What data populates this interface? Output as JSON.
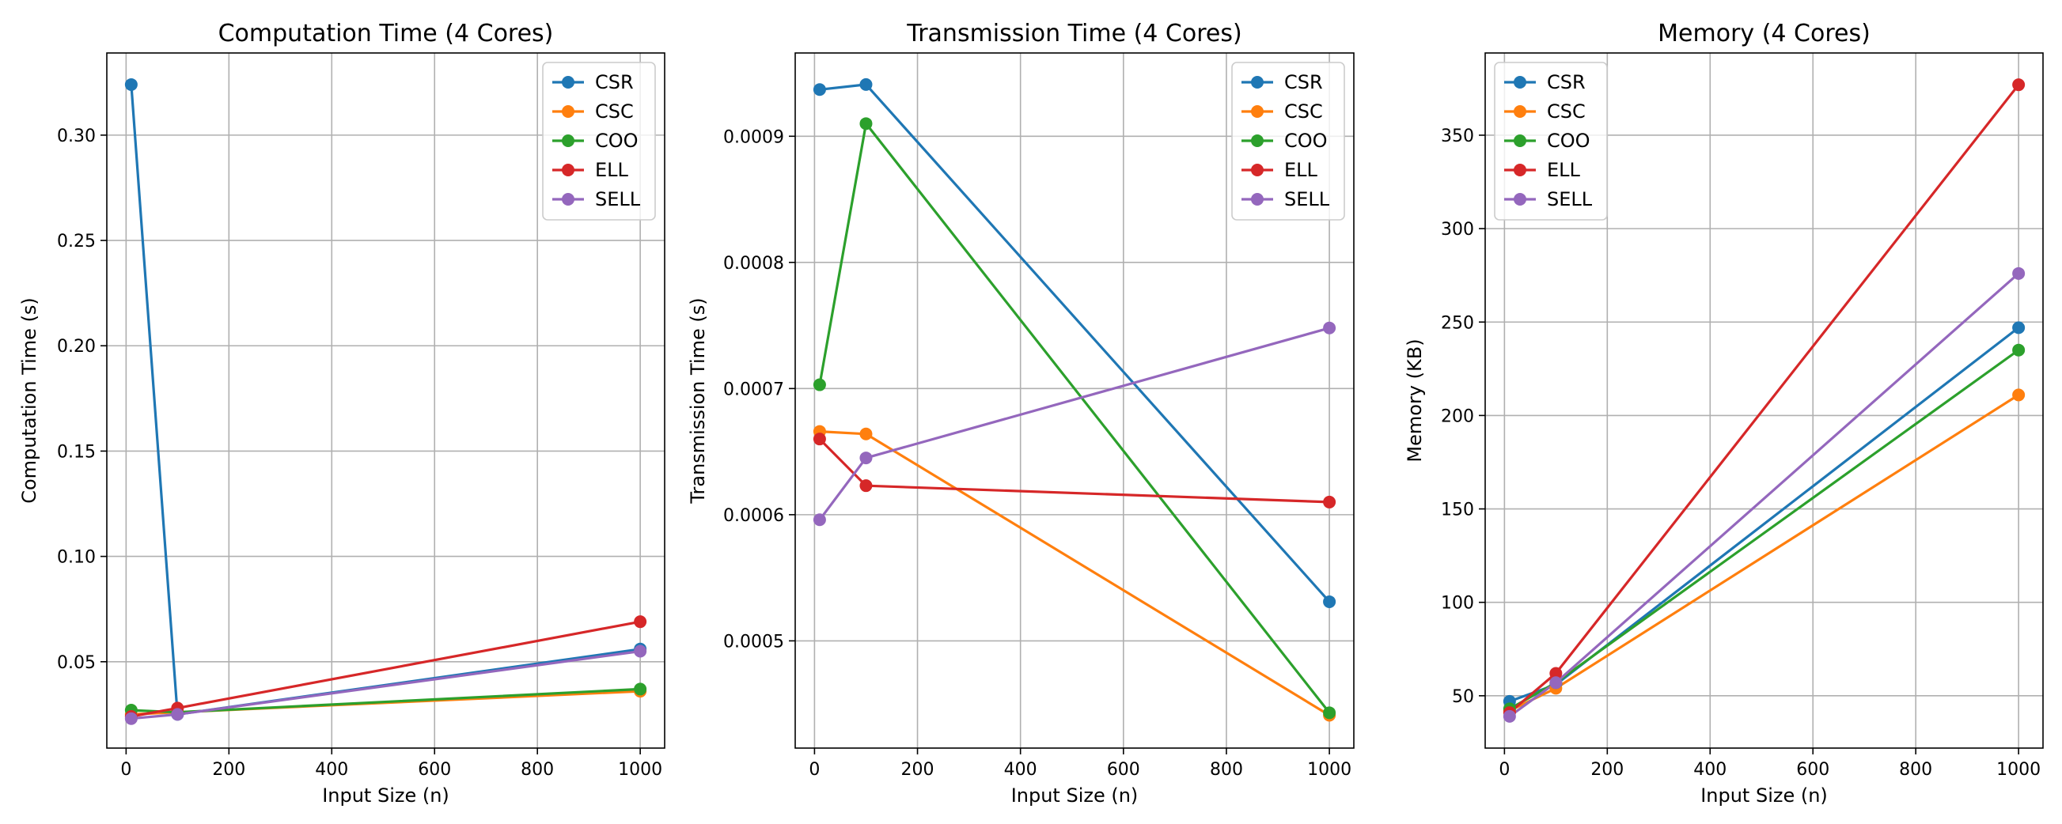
{
  "chart_data": [
    {
      "type": "line",
      "title": "Computation Time (4 Cores)",
      "xlabel": "Input Size (n)",
      "ylabel": "Computation Time (s)",
      "xlim": [
        -37.5,
        1047.5
      ],
      "ylim": [
        0.009,
        0.339
      ],
      "xticks": [
        0,
        200,
        400,
        600,
        800,
        1000
      ],
      "yticks": [
        0.05,
        0.1,
        0.15,
        0.2,
        0.25,
        0.3
      ],
      "ytick_labels": [
        "0.05",
        "0.10",
        "0.15",
        "0.20",
        "0.25",
        "0.30"
      ],
      "grid": true,
      "legend": "upper right",
      "x": [
        10,
        100,
        1000
      ],
      "series": [
        {
          "name": "CSR",
          "values": [
            0.324,
            0.025,
            0.056
          ],
          "color": "#1f77b4"
        },
        {
          "name": "CSC",
          "values": [
            0.025,
            0.026,
            0.036
          ],
          "color": "#ff7f0e"
        },
        {
          "name": "COO",
          "values": [
            0.027,
            0.026,
            0.037
          ],
          "color": "#2ca02c"
        },
        {
          "name": "ELL",
          "values": [
            0.024,
            0.028,
            0.069
          ],
          "color": "#d62728"
        },
        {
          "name": "SELL",
          "values": [
            0.023,
            0.025,
            0.055
          ],
          "color": "#9467bd"
        }
      ]
    },
    {
      "type": "line",
      "title": "Transmission Time (4 Cores)",
      "xlabel": "Input Size (n)",
      "ylabel": "Transmission Time (s)",
      "xlim": [
        -37.5,
        1047.5
      ],
      "ylim": [
        0.000415,
        0.000966
      ],
      "xticks": [
        0,
        200,
        400,
        600,
        800,
        1000
      ],
      "yticks": [
        0.0005,
        0.0006,
        0.0007,
        0.0008,
        0.0009
      ],
      "ytick_labels": [
        "0.0005",
        "0.0006",
        "0.0007",
        "0.0008",
        "0.0009"
      ],
      "grid": true,
      "legend": "upper right",
      "x": [
        10,
        100,
        1000
      ],
      "series": [
        {
          "name": "CSR",
          "values": [
            0.000937,
            0.000941,
            0.000531
          ],
          "color": "#1f77b4"
        },
        {
          "name": "CSC",
          "values": [
            0.000666,
            0.000664,
            0.000441
          ],
          "color": "#ff7f0e"
        },
        {
          "name": "COO",
          "values": [
            0.000703,
            0.00091,
            0.000443
          ],
          "color": "#2ca02c"
        },
        {
          "name": "ELL",
          "values": [
            0.00066,
            0.000623,
            0.00061
          ],
          "color": "#d62728"
        },
        {
          "name": "SELL",
          "values": [
            0.000596,
            0.000645,
            0.000748
          ],
          "color": "#9467bd"
        }
      ]
    },
    {
      "type": "line",
      "title": "Memory (4 Cores)",
      "xlabel": "Input Size (n)",
      "ylabel": "Memory (KB)",
      "xlim": [
        -37.5,
        1047.5
      ],
      "ylim": [
        22,
        394
      ],
      "xticks": [
        0,
        200,
        400,
        600,
        800,
        1000
      ],
      "yticks": [
        50,
        100,
        150,
        200,
        250,
        300,
        350
      ],
      "ytick_labels": [
        "50",
        "100",
        "150",
        "200",
        "250",
        "300",
        "350"
      ],
      "grid": true,
      "legend": "upper left",
      "x": [
        10,
        100,
        1000
      ],
      "series": [
        {
          "name": "CSR",
          "values": [
            47,
            56,
            247
          ],
          "color": "#1f77b4"
        },
        {
          "name": "CSC",
          "values": [
            42,
            54,
            211
          ],
          "color": "#ff7f0e"
        },
        {
          "name": "COO",
          "values": [
            43,
            57,
            235
          ],
          "color": "#2ca02c"
        },
        {
          "name": "ELL",
          "values": [
            41,
            62,
            377
          ],
          "color": "#d62728"
        },
        {
          "name": "SELL",
          "values": [
            39,
            57,
            276
          ],
          "color": "#9467bd"
        }
      ]
    }
  ]
}
